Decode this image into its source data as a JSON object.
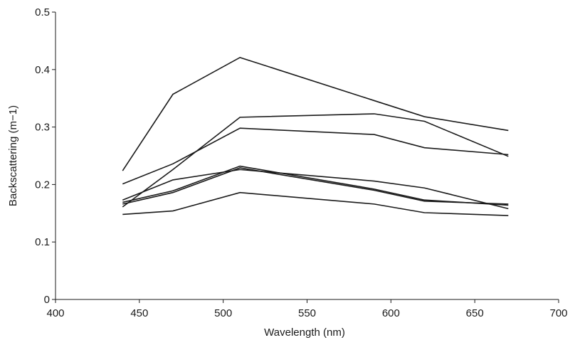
{
  "chart_data": {
    "type": "line",
    "title": "",
    "xlabel": "Wavelength (nm)",
    "ylabel": "Backscattering (m−1)",
    "xlim": [
      400,
      700
    ],
    "ylim": [
      0,
      0.5
    ],
    "xticks": [
      400,
      450,
      500,
      550,
      600,
      650,
      700
    ],
    "yticks": [
      0,
      0.1,
      0.2,
      0.3,
      0.4,
      0.5
    ],
    "ytick_labels": [
      "0",
      "0.1",
      "0.2",
      "0.3",
      "0.4",
      "0.5"
    ],
    "grid": false,
    "legend": "none",
    "line_color": "#1a1a1a",
    "x": [
      440,
      470,
      510,
      590,
      620,
      670
    ],
    "series": [
      {
        "values": [
          0.224,
          0.357,
          0.421,
          0.346,
          0.318,
          0.294
        ]
      },
      {
        "values": [
          0.161,
          0.226,
          0.317,
          0.323,
          0.31,
          0.249
        ]
      },
      {
        "values": [
          0.201,
          0.236,
          0.298,
          0.287,
          0.264,
          0.252
        ]
      },
      {
        "values": [
          0.173,
          0.208,
          0.226,
          0.206,
          0.194,
          0.158
        ]
      },
      {
        "values": [
          0.169,
          0.189,
          0.232,
          0.192,
          0.173,
          0.164
        ]
      },
      {
        "values": [
          0.166,
          0.186,
          0.229,
          0.19,
          0.171,
          0.166
        ]
      },
      {
        "values": [
          0.148,
          0.154,
          0.186,
          0.166,
          0.151,
          0.146
        ]
      }
    ]
  }
}
